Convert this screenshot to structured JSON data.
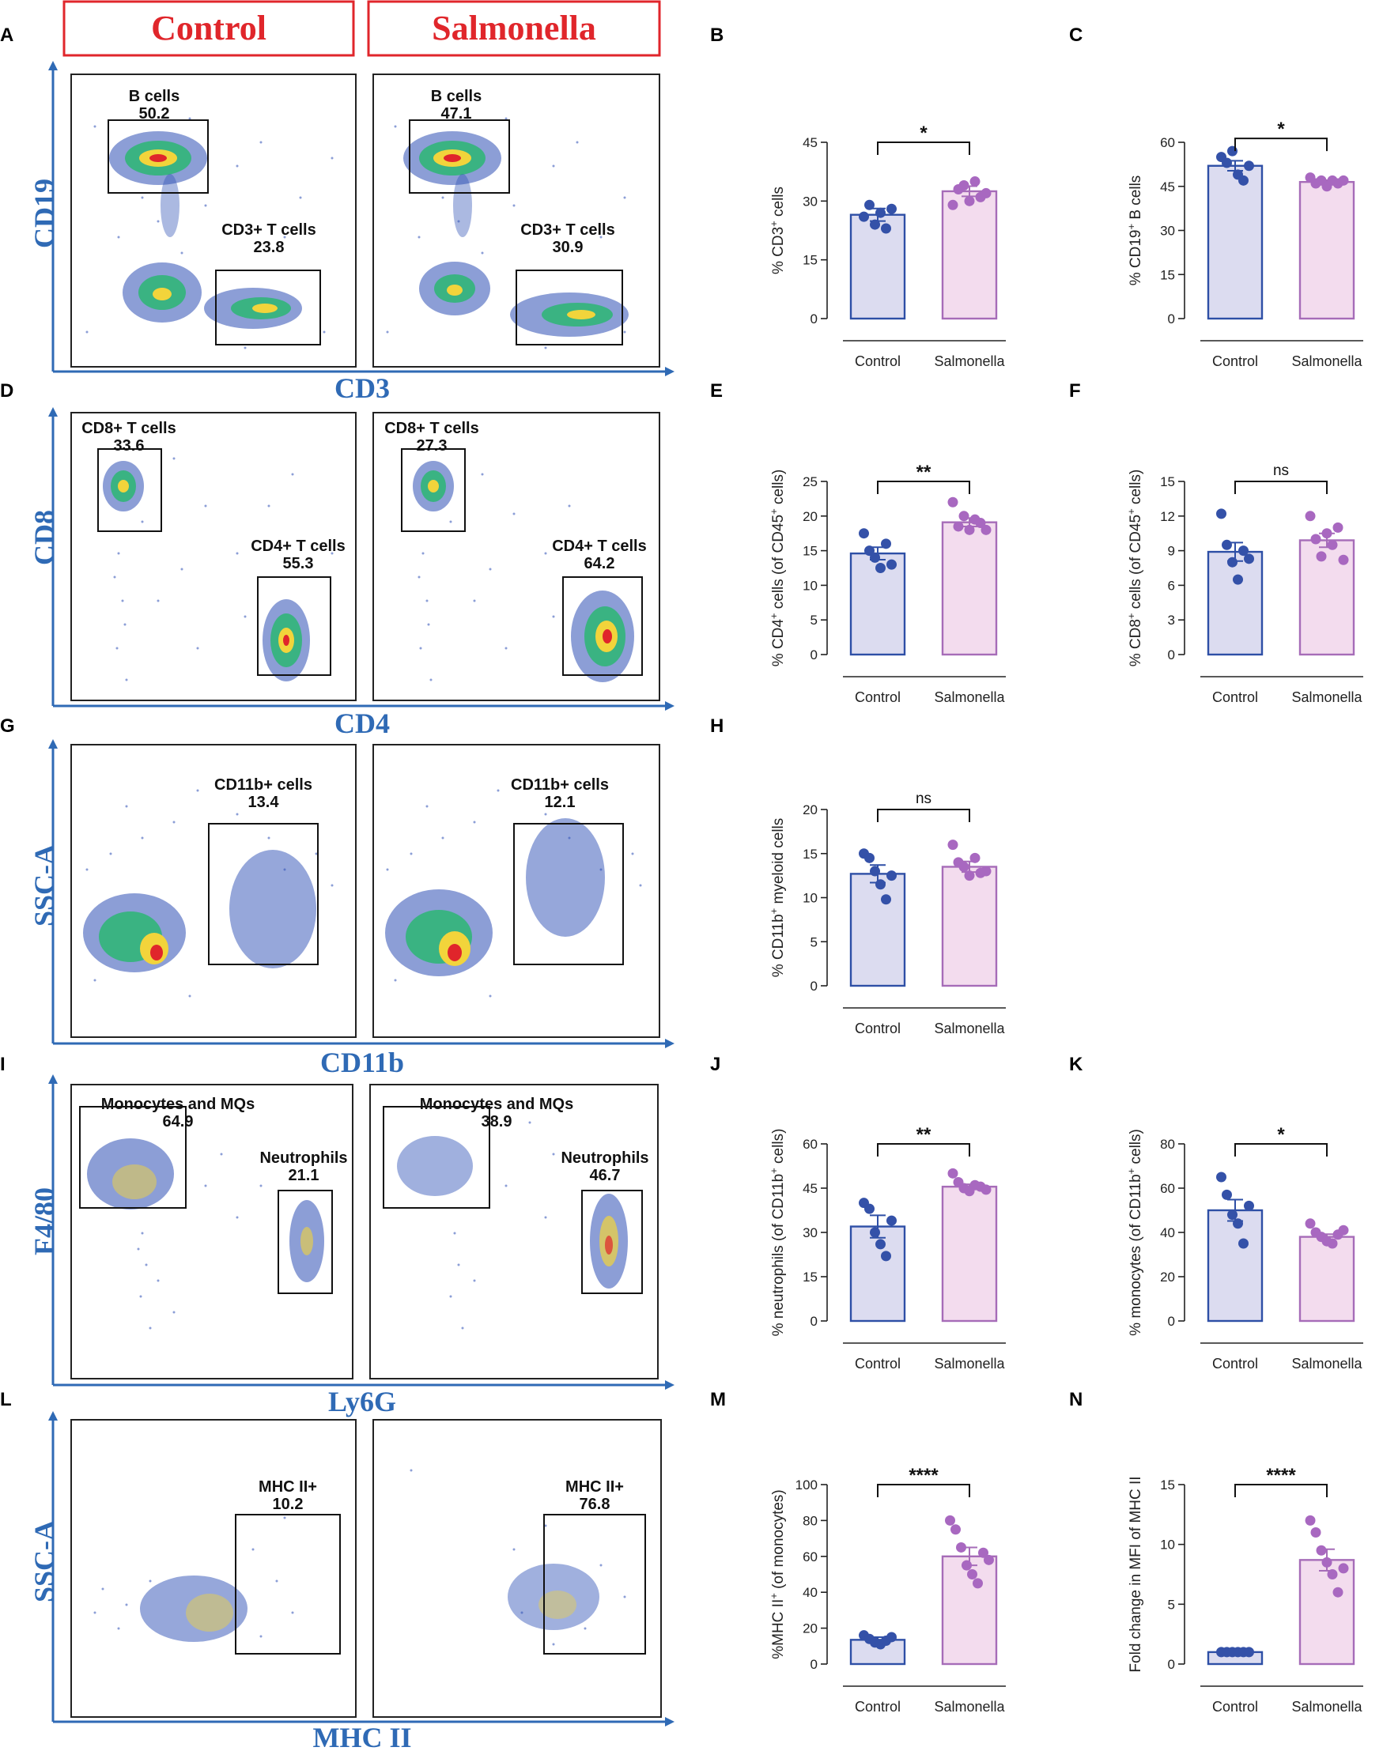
{
  "headers": {
    "control": "Control",
    "salmonella": "Salmonella"
  },
  "panel_letters": [
    "A",
    "B",
    "C",
    "D",
    "E",
    "F",
    "G",
    "H",
    "I",
    "J",
    "K",
    "L",
    "M",
    "N"
  ],
  "colors": {
    "control_fill": "#dcdcf0",
    "control_stroke": "#2e4fa6",
    "control_dot": "#3451a8",
    "salm_fill": "#f3dcee",
    "salm_stroke": "#a66cb8",
    "salm_dot": "#a868c0",
    "axis_blue": "#2f6ab5",
    "header_red": "#e0262b"
  },
  "flow_rows": [
    {
      "id": "A",
      "y_axis": "CD19",
      "x_axis": "CD3",
      "control_gates": [
        {
          "name": "B cells",
          "value": "50.2"
        },
        {
          "name": "CD3+ T cells",
          "value": "23.8"
        }
      ],
      "salmonella_gates": [
        {
          "name": "B cells",
          "value": "47.1"
        },
        {
          "name": "CD3+ T cells",
          "value": "30.9"
        }
      ]
    },
    {
      "id": "D",
      "y_axis": "CD8",
      "x_axis": "CD4",
      "control_gates": [
        {
          "name": "CD8+ T cells",
          "value": "33.6"
        },
        {
          "name": "CD4+ T cells",
          "value": "55.3"
        }
      ],
      "salmonella_gates": [
        {
          "name": "CD8+ T cells",
          "value": "27.3"
        },
        {
          "name": "CD4+ T cells",
          "value": "64.2"
        }
      ]
    },
    {
      "id": "G",
      "y_axis": "SSC-A",
      "x_axis": "CD11b",
      "control_gates": [
        {
          "name": "CD11b+ cells",
          "value": "13.4"
        }
      ],
      "salmonella_gates": [
        {
          "name": "CD11b+ cells",
          "value": "12.1"
        }
      ]
    },
    {
      "id": "I",
      "y_axis": "F4/80",
      "x_axis": "Ly6G",
      "control_gates": [
        {
          "name": "Monocytes and MQs",
          "value": "64.9"
        },
        {
          "name": "Neutrophils",
          "value": "21.1"
        }
      ],
      "salmonella_gates": [
        {
          "name": "Monocytes and MQs",
          "value": "38.9"
        },
        {
          "name": "Neutrophils",
          "value": "46.7"
        }
      ]
    },
    {
      "id": "L",
      "y_axis": "SSC-A",
      "x_axis": "MHC II",
      "control_gates": [
        {
          "name": "MHC II+",
          "value": "10.2"
        }
      ],
      "salmonella_gates": [
        {
          "name": "MHC II+",
          "value": "76.8"
        }
      ]
    }
  ],
  "chart_data": [
    {
      "panel": "B",
      "type": "bar",
      "categories": [
        "Control",
        "Salmonella"
      ],
      "ylim": [
        0,
        45
      ],
      "yticks": [
        0,
        15,
        30,
        45
      ],
      "ylabel_parts": [
        "% CD3",
        "+",
        " cells"
      ],
      "values": [
        26.5,
        32.5
      ],
      "sem": [
        1.6,
        1.3
      ],
      "points": [
        [
          26,
          29,
          24,
          27,
          23,
          28
        ],
        [
          29,
          33,
          34,
          30,
          35,
          31,
          32
        ]
      ],
      "significance": "*"
    },
    {
      "panel": "C",
      "type": "bar",
      "categories": [
        "Control",
        "Salmonella"
      ],
      "ylim": [
        0,
        60
      ],
      "yticks": [
        0,
        15,
        30,
        45,
        60
      ],
      "ylabel_parts": [
        "% CD19",
        "+",
        " B cells"
      ],
      "values": [
        52,
        46.5
      ],
      "sem": [
        1.7,
        0.6
      ],
      "points": [
        [
          55,
          53,
          57,
          49,
          47,
          52
        ],
        [
          48,
          46,
          47,
          45,
          47,
          46,
          47
        ]
      ],
      "significance": "*"
    },
    {
      "panel": "E",
      "type": "bar",
      "categories": [
        "Control",
        "Salmonella"
      ],
      "ylim": [
        0,
        25
      ],
      "yticks": [
        0,
        5,
        10,
        15,
        20,
        25
      ],
      "ylabel_parts": [
        "% CD4",
        "+",
        " cells (of CD45",
        "+",
        " cells)"
      ],
      "values": [
        14.6,
        19.1
      ],
      "sem": [
        0.9,
        0.6
      ],
      "points": [
        [
          17.5,
          15,
          14,
          12.5,
          16,
          13
        ],
        [
          22,
          18.5,
          20,
          18,
          19.5,
          19,
          18
        ]
      ],
      "significance": "**"
    },
    {
      "panel": "F",
      "type": "bar",
      "categories": [
        "Control",
        "Salmonella"
      ],
      "ylim": [
        0,
        15
      ],
      "yticks": [
        0,
        3,
        6,
        9,
        12,
        15
      ],
      "ylabel_parts": [
        "% CD8",
        "+",
        " cells (of CD45",
        "+",
        " cells)"
      ],
      "values": [
        8.9,
        9.9
      ],
      "sem": [
        0.8,
        0.6
      ],
      "points": [
        [
          12.2,
          9.5,
          8,
          6.5,
          9,
          8.3
        ],
        [
          12,
          10,
          8.5,
          10.5,
          9.5,
          11,
          8.2
        ]
      ],
      "significance": "ns"
    },
    {
      "panel": "H",
      "type": "bar",
      "categories": [
        "Control",
        "Salmonella"
      ],
      "ylim": [
        0,
        20
      ],
      "yticks": [
        0,
        5,
        10,
        15,
        20
      ],
      "ylabel_parts": [
        "% CD11b",
        "+",
        " myeloid cells"
      ],
      "values": [
        12.7,
        13.5
      ],
      "sem": [
        1.0,
        0.6
      ],
      "points": [
        [
          15,
          14.5,
          13,
          11.5,
          9.8,
          12.5
        ],
        [
          16,
          14,
          13.5,
          12.5,
          14.5,
          12.8,
          13
        ]
      ],
      "significance": "ns"
    },
    {
      "panel": "J",
      "type": "bar",
      "categories": [
        "Control",
        "Salmonella"
      ],
      "ylim": [
        0,
        60
      ],
      "yticks": [
        0,
        15,
        30,
        45,
        60
      ],
      "ylabel_parts": [
        "% neutrophils (of CD11b",
        "+",
        " cells)"
      ],
      "values": [
        32,
        45.5
      ],
      "sem": [
        3.8,
        0.8
      ],
      "points": [
        [
          40,
          38,
          30,
          26,
          22,
          34
        ],
        [
          50,
          47,
          45,
          44,
          46,
          45.5,
          44.5
        ]
      ],
      "significance": "**"
    },
    {
      "panel": "K",
      "type": "bar",
      "categories": [
        "Control",
        "Salmonella"
      ],
      "ylim": [
        0,
        80
      ],
      "yticks": [
        0,
        20,
        40,
        60,
        80
      ],
      "ylabel_parts": [
        "% monocytes (of CD11b",
        "+",
        " cells)"
      ],
      "values": [
        50,
        38
      ],
      "sem": [
        4.8,
        1.2
      ],
      "points": [
        [
          65,
          57,
          48,
          44,
          35,
          52
        ],
        [
          44,
          40,
          38,
          36,
          35,
          39,
          41
        ]
      ],
      "significance": "*"
    },
    {
      "panel": "M",
      "type": "bar",
      "categories": [
        "Control",
        "Salmonella"
      ],
      "ylim": [
        0,
        100
      ],
      "yticks": [
        0,
        20,
        40,
        60,
        80,
        100
      ],
      "ylabel_parts": [
        "%MHC II",
        "+",
        " (of monocytes)"
      ],
      "values": [
        13.5,
        60
      ],
      "sem": [
        1.5,
        5
      ],
      "points": [
        [
          16,
          14,
          12,
          11,
          13,
          15
        ],
        [
          80,
          75,
          65,
          55,
          50,
          45,
          62,
          58
        ]
      ],
      "significance": "****"
    },
    {
      "panel": "N",
      "type": "bar",
      "categories": [
        "Control",
        "Salmonella"
      ],
      "ylim": [
        0,
        15
      ],
      "yticks": [
        0,
        5,
        10,
        15
      ],
      "ylabel_parts": [
        "Fold change in MFI of MHC II"
      ],
      "values": [
        1.0,
        8.7
      ],
      "sem": [
        0.05,
        0.9
      ],
      "points": [
        [
          1,
          1,
          1,
          1,
          1,
          1
        ],
        [
          12,
          11,
          9.5,
          8.5,
          7.5,
          6,
          8
        ]
      ],
      "significance": "****"
    }
  ]
}
